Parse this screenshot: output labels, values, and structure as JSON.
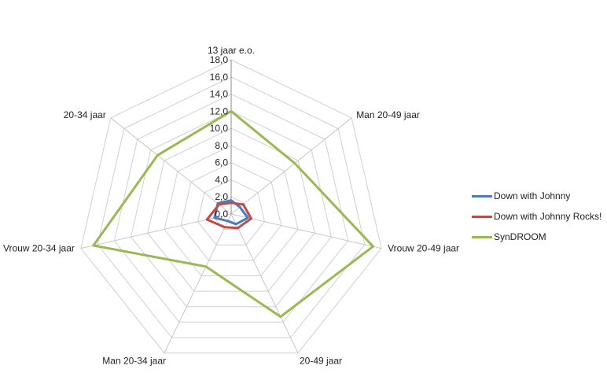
{
  "chart_data": {
    "type": "radar",
    "categories": [
      "13 jaar e.o.",
      "Man 20-49 jaar",
      "Vrouw 20-49 jaar",
      "20-49 jaar",
      "Man 20-34 jaar",
      "Vrouw 20-34 jaar",
      "20-34 jaar"
    ],
    "rticks": [
      "0,0",
      "2,0",
      "4,0",
      "6,0",
      "8,0",
      "10,0",
      "12,0",
      "14,0",
      "16,0",
      "18,0"
    ],
    "rlim": [
      0,
      18
    ],
    "grid": true,
    "legend_position": "right",
    "series": [
      {
        "name": "Down with Johnny",
        "color": "#4a7ebb",
        "values": [
          1.6,
          1.3,
          2.0,
          1.3,
          0.9,
          2.0,
          2.0
        ]
      },
      {
        "name": "Down with Johnny Rocks!",
        "color": "#be4b48",
        "values": [
          1.3,
          1.8,
          2.4,
          1.8,
          1.7,
          2.9,
          1.8
        ]
      },
      {
        "name": "SynDROOM",
        "color": "#98b954",
        "values": [
          12.0,
          9.5,
          17.0,
          13.3,
          6.8,
          16.5,
          11.0
        ]
      }
    ]
  }
}
